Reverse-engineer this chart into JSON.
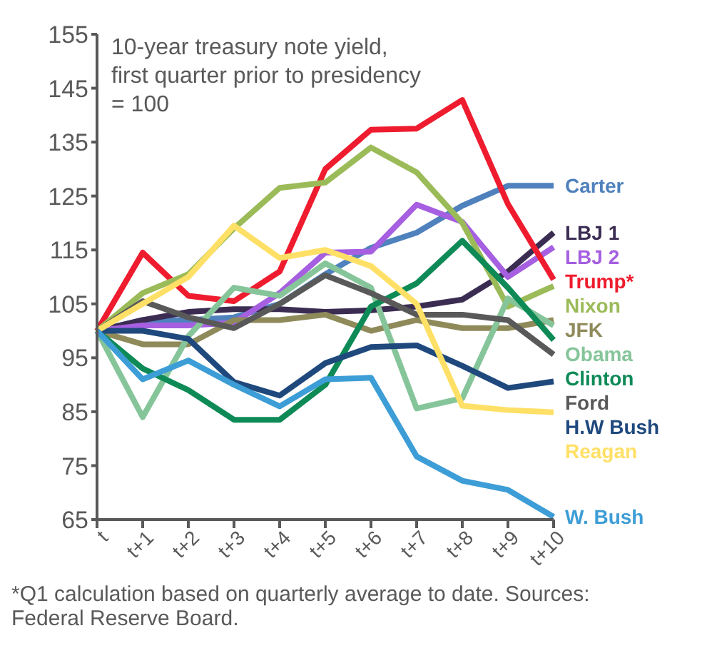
{
  "chart_data": {
    "type": "line",
    "subtitle": "10-year treasury note yield, first quarter prior to presidency = 100",
    "categories": [
      "t",
      "t+1",
      "t+2",
      "t+3",
      "t+4",
      "t+5",
      "t+6",
      "t+7",
      "t+8",
      "t+9",
      "t+10"
    ],
    "series": [
      {
        "name": "Carter",
        "color": "#4f81bd",
        "values": [
          100,
          102,
          102,
          102.5,
          105,
          110.5,
          115.4,
          118.2,
          123.2,
          126.9,
          126.9
        ]
      },
      {
        "name": "LBJ 1",
        "color": "#3b2d52",
        "values": [
          100,
          102,
          103.5,
          104,
          104,
          103.5,
          103.8,
          104.5,
          105.8,
          111,
          118.2
        ]
      },
      {
        "name": "LBJ 2",
        "color": "#a55fe0",
        "values": [
          100,
          101,
          101,
          101.5,
          107,
          114.5,
          114.7,
          123.4,
          120.2,
          110,
          115.5
        ]
      },
      {
        "name": "Trump*",
        "color": "#ee1c2e",
        "values": [
          100,
          114.5,
          106.5,
          105.5,
          111,
          130,
          137.3,
          137.5,
          142.8,
          123.5,
          109.5
        ]
      },
      {
        "name": "Nixon",
        "color": "#9bbb59",
        "values": [
          100,
          107,
          110.5,
          119,
          126.5,
          127.5,
          134,
          129.4,
          120,
          104.5,
          108.3
        ]
      },
      {
        "name": "JFK",
        "color": "#8f8a5a",
        "values": [
          100,
          97.5,
          97.5,
          102,
          102,
          103,
          100,
          102,
          100.5,
          100.5,
          102
        ]
      },
      {
        "name": "Obama",
        "color": "#86c59a",
        "values": [
          100,
          84,
          99,
          108,
          106.5,
          112.5,
          108,
          85.6,
          87.5,
          106,
          101
        ]
      },
      {
        "name": "Clinton",
        "color": "#0e8a57",
        "values": [
          100,
          93,
          89,
          83.5,
          83.5,
          90,
          104.5,
          108.8,
          116.7,
          108,
          98.3
        ]
      },
      {
        "name": "Ford",
        "color": "#595959",
        "values": [
          100,
          105.5,
          102.5,
          100.5,
          105,
          110.3,
          107,
          103,
          103,
          102,
          95.6
        ]
      },
      {
        "name": "H.W Bush",
        "color": "#1f497d",
        "values": [
          100,
          100,
          98.5,
          90.5,
          88,
          94,
          97,
          97.3,
          93.5,
          89.4,
          90.6
        ]
      },
      {
        "name": "Reagan",
        "color": "#ffe066",
        "values": [
          100,
          105,
          110,
          119.5,
          113.5,
          115,
          112,
          105,
          86.1,
          85.3,
          84.9
        ]
      },
      {
        "name": "W. Bush",
        "color": "#3d9dd6",
        "values": [
          100,
          91,
          94.5,
          90,
          86,
          91,
          91.3,
          76.7,
          72.2,
          70.5,
          65.5
        ]
      }
    ],
    "ylim": [
      65,
      155
    ],
    "yticks": [
      65,
      75,
      85,
      95,
      105,
      115,
      125,
      135,
      145,
      155
    ],
    "grid": false,
    "legend": false,
    "marker": "none",
    "line_style": "solid",
    "annotations": [
      "*Q1 calculation based on quarterly average to date. Sources: Federal Reserve Board."
    ]
  }
}
